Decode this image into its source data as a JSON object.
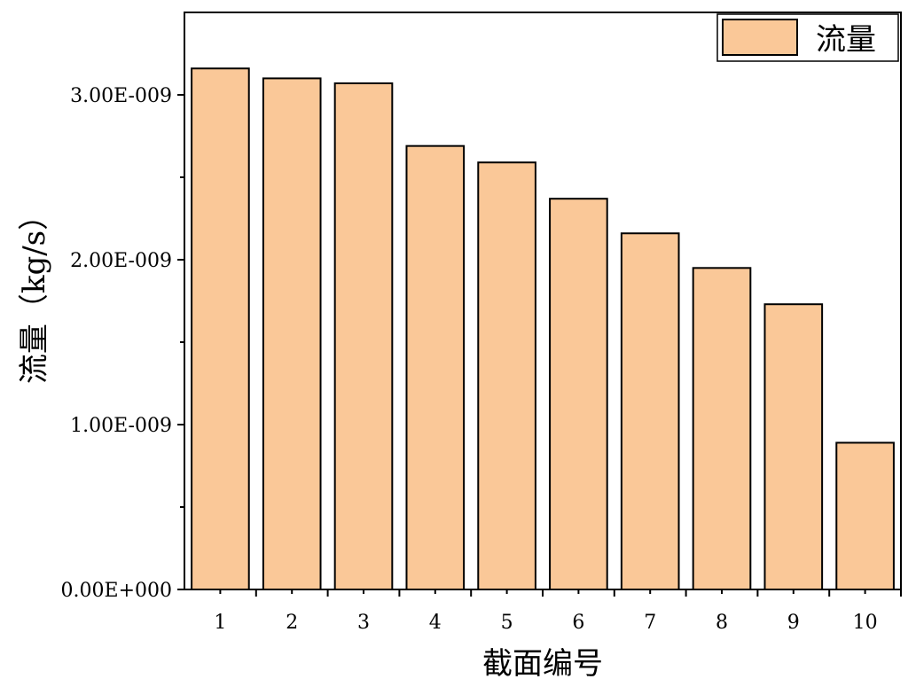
{
  "chart_data": {
    "type": "bar",
    "categories": [
      "1",
      "2",
      "3",
      "4",
      "5",
      "6",
      "7",
      "8",
      "9",
      "10"
    ],
    "series": [
      {
        "name": "流量",
        "color": "#FAC898",
        "values": [
          3.16e-09,
          3.1e-09,
          3.07e-09,
          2.69e-09,
          2.59e-09,
          2.37e-09,
          2.16e-09,
          1.95e-09,
          1.73e-09,
          8.9e-10
        ]
      }
    ],
    "xlabel": "截面编号",
    "ylabel": "流量（kg/s）",
    "ylim": [
      0,
      3.5e-09
    ],
    "yticks": [
      {
        "value": 0,
        "label": "0.00E+000"
      },
      {
        "value": 1e-09,
        "label": "1.00E-009"
      },
      {
        "value": 2e-09,
        "label": "2.00E-009"
      },
      {
        "value": 3e-09,
        "label": "3.00E-009"
      }
    ],
    "grid": false,
    "legend_position": "top-right"
  }
}
